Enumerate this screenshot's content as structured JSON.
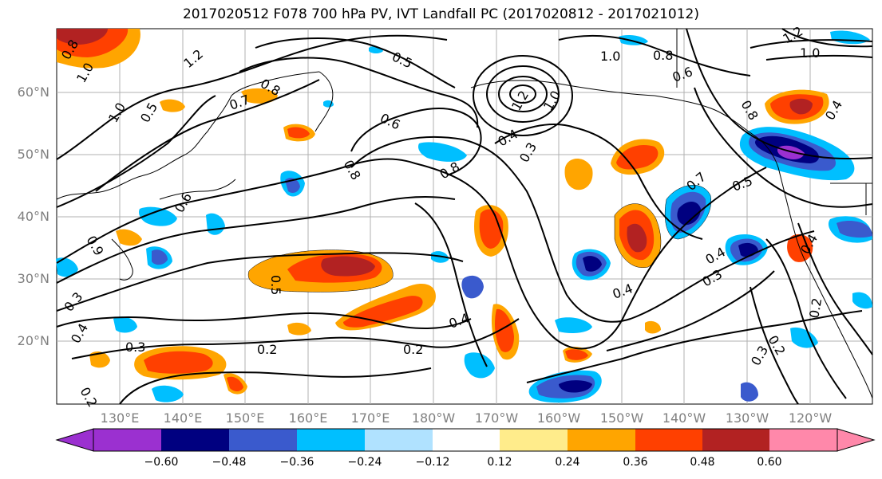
{
  "title": "2017020512 F078 700 hPa PV, IVT Landfall PC (2017020812 - 2017021012)",
  "lat_labels": [
    "60°N",
    "50°N",
    "40°N",
    "30°N",
    "20°N"
  ],
  "lon_labels": [
    "130°E",
    "140°E",
    "150°E",
    "160°E",
    "170°E",
    "180°W",
    "170°W",
    "160°W",
    "150°W",
    "140°W",
    "130°W",
    "120°W"
  ],
  "contour_labels": [
    "1.0",
    "1.2",
    "0.8",
    "0.5",
    "0.6",
    "0.7",
    "0.4",
    "0.3",
    "0.2",
    "0.9"
  ],
  "colorbar": {
    "ticks": [
      "−0.60",
      "−0.48",
      "−0.36",
      "−0.24",
      "−0.12",
      "0.12",
      "0.24",
      "0.36",
      "0.48",
      "0.60"
    ],
    "colors": [
      "#9b30d0",
      "#000080",
      "#3a5acd",
      "#00bfff",
      "#b0e2ff",
      "#ffffff",
      "#ffec8b",
      "#ffa500",
      "#ff4000",
      "#b22222",
      "#ff88aa"
    ]
  }
}
